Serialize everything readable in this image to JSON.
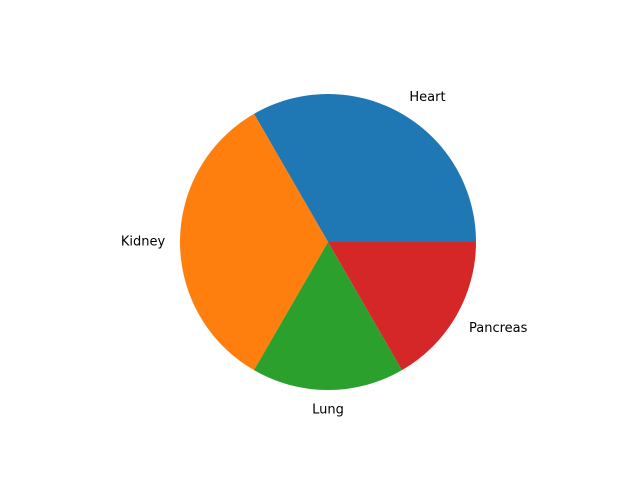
{
  "chart_data": {
    "type": "pie",
    "categories": [
      "Heart",
      "Kidney",
      "Lung",
      "Pancreas"
    ],
    "values": [
      2,
      2,
      1,
      1
    ],
    "colors": [
      "#1f77b4",
      "#ff7f0e",
      "#2ca02c",
      "#d62728"
    ],
    "start_angle_deg": 0,
    "direction": "counterclockwise",
    "title": "",
    "legend": "none"
  }
}
